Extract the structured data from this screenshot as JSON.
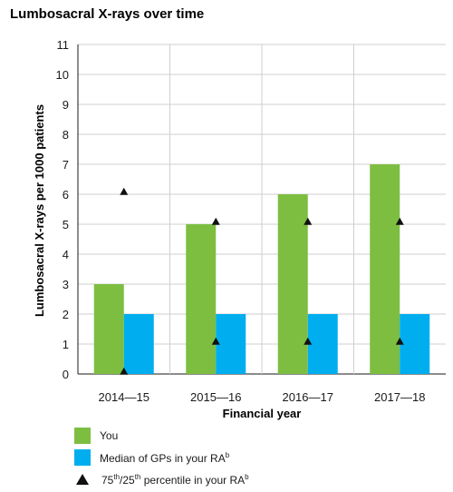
{
  "chart_data": {
    "type": "bar",
    "title": "Lumbosacral X-rays over time",
    "xlabel": "Financial year",
    "ylabel": "Lumbosacral X-rays per 1000 patients",
    "ylim": [
      0,
      11
    ],
    "yticks": [
      "0",
      "1",
      "2",
      "3",
      "4",
      "5",
      "6",
      "7",
      "8",
      "9",
      "10",
      "11"
    ],
    "categories": [
      "2014—15",
      "2015—16",
      "2016—17",
      "2017—18"
    ],
    "series": [
      {
        "name": "You",
        "color": "#7dbe41",
        "values": [
          3,
          5,
          6,
          7
        ]
      },
      {
        "name": "Median of GPs in your RA",
        "color": "#00aeef",
        "values": [
          2,
          2,
          2,
          2
        ]
      }
    ],
    "markers": {
      "name": "75th/25th percentile in your RA",
      "p75": [
        6.1,
        5.1,
        5.1,
        5.1
      ],
      "p25": [
        0.1,
        1.1,
        1.1,
        1.1
      ]
    },
    "legend_position": "bottom-left"
  },
  "legend": {
    "you": "You",
    "median": "Median of GPs in your RA",
    "median_sup": "b",
    "pct_75": "75",
    "pct_75_sup": "th",
    "pct_sep": "/",
    "pct_25": "25",
    "pct_25_sup": "th",
    "pct_rest": " percentile in your RA",
    "pct_sup": "b"
  }
}
